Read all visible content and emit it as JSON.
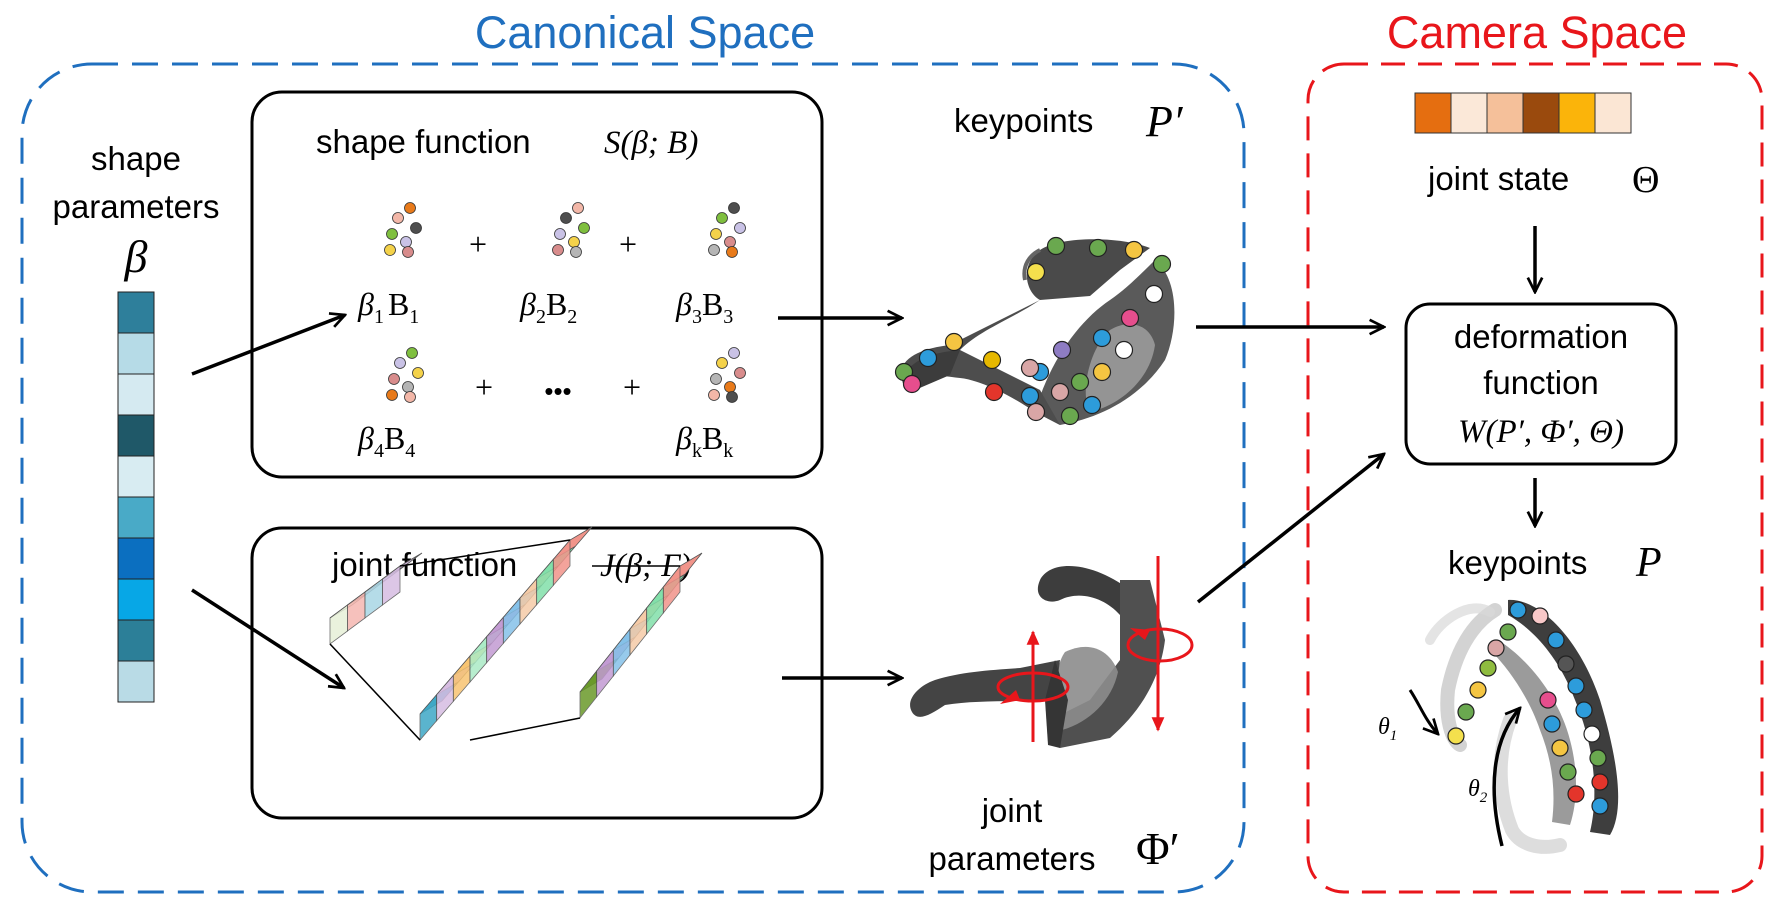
{
  "regions": {
    "canonical_title": "Canonical Space",
    "camera_title": "Camera Space"
  },
  "colors": {
    "canonical": "#1f6fbf",
    "camera": "#e8161b",
    "arrow": "#000000",
    "joint_marker": "#e8161b"
  },
  "shape_params": {
    "label_line1": "shape",
    "label_line2": "parameters",
    "symbol": "β",
    "bar_colors": [
      "#2e7f9b",
      "#b6dbe7",
      "#d5eaf1",
      "#1f5868",
      "#d8ecf2",
      "#49aac7",
      "#0b6fc0",
      "#07a7e6",
      "#2c7f98",
      "#b9dbe6"
    ]
  },
  "shape_function": {
    "title": "shape function",
    "formula": "S(β; B)",
    "terms": [
      {
        "coef": "β",
        "sub": "1",
        "basis": "B",
        "bsub": "1"
      },
      {
        "coef": "β",
        "sub": "2",
        "basis": "B",
        "bsub": "2"
      },
      {
        "coef": "β",
        "sub": "3",
        "basis": "B",
        "bsub": "3"
      },
      {
        "coef": "β",
        "sub": "4",
        "basis": "B",
        "bsub": "4"
      },
      {
        "coef": "β",
        "sub": "k",
        "basis": "B",
        "bsub": "k"
      }
    ],
    "plus": "+",
    "dots": "•••"
  },
  "joint_function": {
    "title": "joint function",
    "formula": "J(β; Γ)"
  },
  "keypoints_canonical": {
    "label": "keypoints",
    "symbol": "P′"
  },
  "joint_params": {
    "label_line1": "joint",
    "label_line2": "parameters",
    "symbol": "Φ′"
  },
  "joint_state": {
    "label": "joint state",
    "symbol": "Θ",
    "bar_colors": [
      "#e56e10",
      "#fbe8d8",
      "#f5c09a",
      "#9a4a0d",
      "#fbb40a",
      "#fbe6d4"
    ]
  },
  "deformation": {
    "line1": "deformation",
    "line2": "function",
    "formula": "W(P′, Φ′, Θ)"
  },
  "keypoints_camera": {
    "label": "keypoints",
    "symbol": "P"
  },
  "angles": {
    "theta1": "θ",
    "theta1_sub": "1",
    "theta2": "θ",
    "theta2_sub": "2"
  }
}
